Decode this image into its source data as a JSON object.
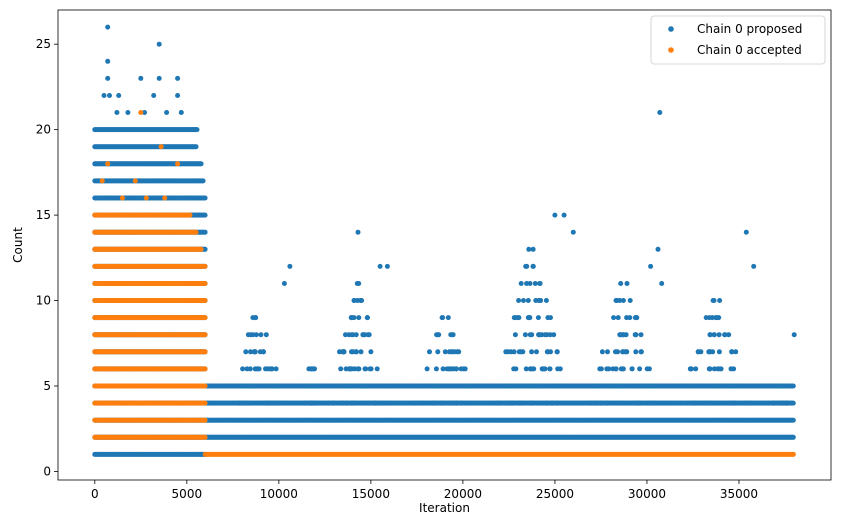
{
  "chart_data": {
    "type": "scatter",
    "title": "",
    "xlabel": "Iteration",
    "ylabel": "Count",
    "xlim": [
      -2000,
      40000
    ],
    "ylim": [
      -0.5,
      27
    ],
    "xticks": [
      0,
      5000,
      10000,
      15000,
      20000,
      25000,
      30000,
      35000
    ],
    "yticks": [
      0,
      5,
      10,
      15,
      20,
      25
    ],
    "grid": false,
    "legend_position": "top-right",
    "series": [
      {
        "name": "Chain 0 proposed",
        "color": "#1f77b4",
        "bands": [
          {
            "y": 1,
            "x": [
              0,
              6000
            ]
          },
          {
            "y": 2,
            "x": [
              0,
              38000
            ]
          },
          {
            "y": 3,
            "x": [
              0,
              38000
            ]
          },
          {
            "y": 4,
            "x": [
              0,
              38000
            ]
          },
          {
            "y": 5,
            "x": [
              0,
              38000
            ]
          },
          {
            "y": 6,
            "x": [
              0,
              6000
            ]
          },
          {
            "y": 7,
            "x": [
              0,
              6000
            ]
          },
          {
            "y": 8,
            "x": [
              0,
              6000
            ]
          },
          {
            "y": 9,
            "x": [
              0,
              6000
            ]
          },
          {
            "y": 10,
            "x": [
              0,
              6000
            ]
          },
          {
            "y": 11,
            "x": [
              0,
              6000
            ]
          },
          {
            "y": 12,
            "x": [
              0,
              6000
            ]
          },
          {
            "y": 13,
            "x": [
              0,
              6000
            ]
          },
          {
            "y": 14,
            "x": [
              0,
              6000
            ]
          },
          {
            "y": 15,
            "x": [
              0,
              6000
            ]
          },
          {
            "y": 16,
            "x": [
              0,
              6000
            ]
          },
          {
            "y": 17,
            "x": [
              0,
              5900
            ]
          },
          {
            "y": 18,
            "x": [
              0,
              5800
            ]
          },
          {
            "y": 19,
            "x": [
              0,
              5500
            ]
          },
          {
            "y": 20,
            "x": [
              0,
              5600
            ]
          }
        ],
        "sparse": [
          [
            700,
            26
          ],
          [
            700,
            24
          ],
          [
            700,
            23
          ],
          [
            500,
            22
          ],
          [
            800,
            22
          ],
          [
            1300,
            22
          ],
          [
            2500,
            23
          ],
          [
            3500,
            25
          ],
          [
            3500,
            23
          ],
          [
            4500,
            23
          ],
          [
            4500,
            22
          ],
          [
            3200,
            22
          ],
          [
            1200,
            21
          ],
          [
            1800,
            21
          ],
          [
            2700,
            21
          ],
          [
            3900,
            21
          ],
          [
            4700,
            21
          ],
          [
            30700,
            21
          ],
          [
            5500,
            20
          ],
          [
            14300,
            14
          ],
          [
            10600,
            12
          ],
          [
            15500,
            12
          ],
          [
            15900,
            12
          ],
          [
            10300,
            11
          ],
          [
            26000,
            14
          ],
          [
            25000,
            15
          ],
          [
            25500,
            15
          ],
          [
            30600,
            13
          ],
          [
            35400,
            14
          ],
          [
            35800,
            12
          ],
          [
            30200,
            12
          ],
          [
            30800,
            11
          ],
          [
            38000,
            8
          ]
        ],
        "clusters": [
          {
            "x": [
              7000,
              10700
            ],
            "ymax": 9
          },
          {
            "x": [
              11000,
              12500
            ],
            "ymax": 6
          },
          {
            "x": [
              12500,
              16000
            ],
            "ymax": 11
          },
          {
            "x": [
              17000,
              21000
            ],
            "ymax": 9
          },
          {
            "x": [
              21500,
              26000
            ],
            "ymax": 13
          },
          {
            "x": [
              26500,
              31000
            ],
            "ymax": 11
          },
          {
            "x": [
              31500,
              36000
            ],
            "ymax": 10
          },
          {
            "x": [
              36500,
              38000
            ],
            "ymax": 5
          }
        ]
      },
      {
        "name": "Chain 0 accepted",
        "color": "#ff7f0e",
        "bands": [
          {
            "y": 1,
            "x": [
              6000,
              38000
            ]
          },
          {
            "y": 2,
            "x": [
              0,
              6000
            ]
          },
          {
            "y": 3,
            "x": [
              0,
              6000
            ]
          },
          {
            "y": 4,
            "x": [
              0,
              6000
            ]
          },
          {
            "y": 5,
            "x": [
              0,
              6000
            ]
          },
          {
            "y": 6,
            "x": [
              0,
              6000
            ]
          },
          {
            "y": 7,
            "x": [
              0,
              6000
            ]
          },
          {
            "y": 8,
            "x": [
              0,
              6000
            ]
          },
          {
            "y": 9,
            "x": [
              0,
              6000
            ]
          },
          {
            "y": 10,
            "x": [
              0,
              6000
            ]
          },
          {
            "y": 11,
            "x": [
              0,
              6000
            ]
          },
          {
            "y": 12,
            "x": [
              0,
              6000
            ]
          },
          {
            "y": 13,
            "x": [
              0,
              5800
            ]
          },
          {
            "y": 14,
            "x": [
              0,
              5500
            ]
          },
          {
            "y": 15,
            "x": [
              0,
              5200
            ]
          }
        ],
        "sparse": [
          [
            2500,
            21
          ],
          [
            3600,
            19
          ],
          [
            700,
            18
          ],
          [
            4500,
            18
          ],
          [
            400,
            17
          ],
          [
            2200,
            17
          ],
          [
            1500,
            16
          ],
          [
            3800,
            16
          ],
          [
            2800,
            16
          ]
        ]
      }
    ]
  }
}
